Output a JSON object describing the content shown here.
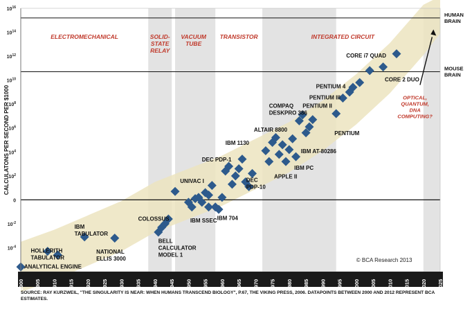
{
  "chart_data": {
    "type": "scatter",
    "ylabel": "CALCULATONS PER SECOND PER $1000",
    "y_scale": "log",
    "x_range": [
      1900,
      2025
    ],
    "y_range_log10": [
      -6,
      16
    ],
    "x_ticks": [
      "1900",
      "1905",
      "1910",
      "1915",
      "1920",
      "1925",
      "1930",
      "1935",
      "1940",
      "1945",
      "1950",
      "1955",
      "1960",
      "1965",
      "1970",
      "1975",
      "1980",
      "1985",
      "1990",
      "1995",
      "2000",
      "2005",
      "2010",
      "2015",
      "2020",
      "2025"
    ],
    "y_ticks": [
      {
        "exp": 16,
        "label": "10"
      },
      {
        "exp": 14,
        "label": "10"
      },
      {
        "exp": 12,
        "label": "10"
      },
      {
        "exp": 10,
        "label": "10"
      },
      {
        "exp": 8,
        "label": "10"
      },
      {
        "exp": 6,
        "label": "10"
      },
      {
        "exp": 4,
        "label": "10"
      },
      {
        "exp": 2,
        "label": "10"
      },
      {
        "exp": 0,
        "label": "0"
      },
      {
        "exp": -2,
        "label": "10"
      },
      {
        "exp": -4,
        "label": "10"
      }
    ],
    "y_tick_exponents": [
      "16",
      "14",
      "12",
      "10",
      "8",
      "6",
      "4",
      "2",
      "",
      "-2",
      "-4"
    ],
    "eras": [
      {
        "label_lines": [
          "ELECTROMECHANICAL"
        ],
        "x0": 1900,
        "x1": 1938,
        "shaded": false
      },
      {
        "label_lines": [
          "SOLID-",
          "STATE",
          "RELAY"
        ],
        "x0": 1938,
        "x1": 1945,
        "shaded": true
      },
      {
        "label_lines": [
          "VACUUM",
          "TUBE"
        ],
        "x0": 1945,
        "x1": 1958,
        "shaded": true
      },
      {
        "label_lines": [
          "TRANSISTOR"
        ],
        "x0": 1958,
        "x1": 1972,
        "shaded": false
      },
      {
        "label_lines": [
          "INTEGRATED CIRCUIT"
        ],
        "x0": 1972,
        "x1": 2020,
        "shaded": false
      }
    ],
    "shaded_regions": [
      [
        1938,
        1945
      ],
      [
        1946,
        1958
      ],
      [
        1972,
        1994
      ],
      [
        2020,
        2025
      ]
    ],
    "reference_lines": [
      {
        "label_lines": [
          "HUMAN",
          "BRAIN"
        ],
        "y_log10": 15.2
      },
      {
        "label_lines": [
          "MOUSE",
          "BRAIN"
        ],
        "y_log10": 10.7
      }
    ],
    "trend_band": {
      "center": [
        [
          1900,
          -5.6
        ],
        [
          1910,
          -4.6
        ],
        [
          1920,
          -3.4
        ],
        [
          1930,
          -2.2
        ],
        [
          1940,
          -0.6
        ],
        [
          1950,
          0.5
        ],
        [
          1960,
          1.6
        ],
        [
          1970,
          3.0
        ],
        [
          1980,
          4.4
        ],
        [
          1990,
          6.2
        ],
        [
          2000,
          8.4
        ],
        [
          2010,
          11.0
        ],
        [
          2020,
          14.2
        ],
        [
          2025,
          16.0
        ]
      ],
      "half_width_log10": 2.1
    },
    "points": [
      [
        1900,
        -5.6
      ],
      [
        1908,
        -4.3
      ],
      [
        1911,
        -4.6
      ],
      [
        1919,
        -3.1
      ],
      [
        1928,
        -3.2
      ],
      [
        1941,
        -2.7
      ],
      [
        1942,
        -2.3
      ],
      [
        1943,
        -2.0
      ],
      [
        1944,
        -1.6
      ],
      [
        1946,
        0.7
      ],
      [
        1950,
        -0.2
      ],
      [
        1951,
        -0.6
      ],
      [
        1952,
        0.1
      ],
      [
        1953,
        0.2
      ],
      [
        1954,
        -0.2
      ],
      [
        1955,
        0.6
      ],
      [
        1956,
        0.4
      ],
      [
        1956,
        -0.6
      ],
      [
        1957,
        1.2
      ],
      [
        1958,
        -0.6
      ],
      [
        1959,
        -0.8
      ],
      [
        1960,
        0.2
      ],
      [
        1961,
        2.4
      ],
      [
        1962,
        2.8
      ],
      [
        1963,
        1.3
      ],
      [
        1964,
        2.0
      ],
      [
        1965,
        2.6
      ],
      [
        1966,
        3.4
      ],
      [
        1967,
        1.5
      ],
      [
        1968,
        1.1
      ],
      [
        1969,
        2.2
      ],
      [
        1973,
        4.1
      ],
      [
        1974,
        3.2
      ],
      [
        1975,
        4.8
      ],
      [
        1976,
        5.2
      ],
      [
        1977,
        3.8
      ],
      [
        1978,
        4.6
      ],
      [
        1979,
        3.2
      ],
      [
        1980,
        4.2
      ],
      [
        1981,
        5.1
      ],
      [
        1982,
        3.6
      ],
      [
        1983,
        6.6
      ],
      [
        1984,
        7.1
      ],
      [
        1985,
        5.6
      ],
      [
        1986,
        6.1
      ],
      [
        1987,
        6.7
      ],
      [
        1994,
        7.2
      ],
      [
        1996,
        8.5
      ],
      [
        1998,
        9.0
      ],
      [
        1999,
        9.4
      ],
      [
        2001,
        9.8
      ],
      [
        2004,
        10.8
      ],
      [
        2008,
        11.1
      ],
      [
        2012,
        12.2
      ]
    ],
    "annotations": [
      {
        "label_lines": [
          "ANALYTICAL ENGINE"
        ],
        "x": 1901,
        "y_log10": -5.75
      },
      {
        "label_lines": [
          "HOLLERITH",
          "TABULATOR"
        ],
        "x": 1903,
        "y_log10": -4.4
      },
      {
        "label_lines": [
          "IBM",
          "TABULATOR"
        ],
        "x": 1916,
        "y_log10": -2.4
      },
      {
        "label_lines": [
          "NATIONAL",
          "ELLIS 3000"
        ],
        "x": 1922.5,
        "y_log10": -4.5
      },
      {
        "label_lines": [
          "COLOSSUS"
        ],
        "x": 1935,
        "y_log10": -1.75
      },
      {
        "label_lines": [
          "BELL",
          "CALCULATOR",
          "MODEL 1"
        ],
        "x": 1941,
        "y_log10": -3.6
      },
      {
        "label_lines": [
          "UNIVAC I"
        ],
        "x": 1947.5,
        "y_log10": 1.4
      },
      {
        "label_lines": [
          "IBM SSEC"
        ],
        "x": 1950.5,
        "y_log10": -1.9
      },
      {
        "label_lines": [
          "IBM 704"
        ],
        "x": 1958.5,
        "y_log10": -1.7
      },
      {
        "label_lines": [
          "DEC PDP-1"
        ],
        "x": 1954,
        "y_log10": 3.2
      },
      {
        "label_lines": [
          "IBM 1130"
        ],
        "x": 1961,
        "y_log10": 4.6
      },
      {
        "label_lines": [
          "DEC",
          "PDP-10"
        ],
        "x": 1967.2,
        "y_log10": 1.5
      },
      {
        "label_lines": [
          "ALTAIR 8800"
        ],
        "x": 1969.5,
        "y_log10": 5.7
      },
      {
        "label_lines": [
          "COMPAQ",
          "DESKPRO 386"
        ],
        "x": 1974,
        "y_log10": 7.7
      },
      {
        "label_lines": [
          "APPLE II"
        ],
        "x": 1975.5,
        "y_log10": 1.8
      },
      {
        "label_lines": [
          "IBM PC"
        ],
        "x": 1981.5,
        "y_log10": 2.5
      },
      {
        "label_lines": [
          "IBM AT-80286"
        ],
        "x": 1983.5,
        "y_log10": 3.9
      },
      {
        "label_lines": [
          "PENTIUM"
        ],
        "x": 1993.5,
        "y_log10": 5.4
      },
      {
        "label_lines": [
          "PENTIUM II"
        ],
        "x": 1984,
        "y_log10": 7.7
      },
      {
        "label_lines": [
          "PENTIUM III"
        ],
        "x": 1986,
        "y_log10": 8.4
      },
      {
        "label_lines": [
          "PENTIUM 4"
        ],
        "x": 1988,
        "y_log10": 9.3
      },
      {
        "label_lines": [
          "CORE i7 QUAD"
        ],
        "x": 1997,
        "y_log10": 11.9
      },
      {
        "label_lines": [
          "CORE 2 DUO"
        ],
        "x": 2008.5,
        "y_log10": 9.9
      }
    ],
    "future_text_lines": [
      "OPTICAL,",
      "QUANTUM,",
      "DNA",
      "COMPUTING?"
    ],
    "credit": "© BCA Research 2013",
    "source": "SOURCE: RAY KURZWEIL, \"THE SINGULARITY IS NEAR: WHEN HUMANS TRANSCEND BIOLOGY\", P.67, THE VIKING PRESS, 2006. DATAPOINTS BETWEEN 2000 AND 2012 REPRESENT BCA ESTIMATES."
  },
  "colors": {
    "diamond": "#2d5a8c",
    "band": "#ece4bf",
    "shade": "#e3e3e3",
    "era_text": "#c0392b",
    "axis_bar": "#1a1a1a"
  }
}
